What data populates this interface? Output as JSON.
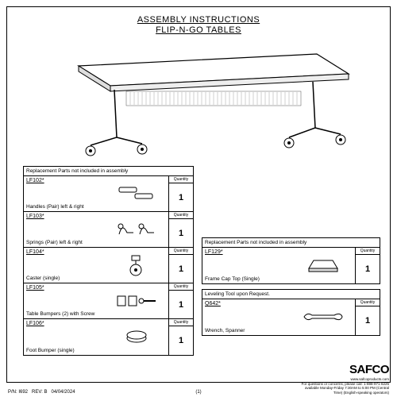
{
  "title": {
    "line1": "ASSEMBLY INSTRUCTIONS",
    "line2": "FLIP-N-GO TABLES"
  },
  "left_table": {
    "header": "Replacement Parts not included in assembly",
    "qty_label": "Quantity",
    "rows": [
      {
        "code": "LF102*",
        "name": "Handles (Pair) left & right",
        "qty": "1",
        "icon": "handles"
      },
      {
        "code": "LF103*",
        "name": "Springs (Pair) left & right",
        "qty": "1",
        "icon": "springs"
      },
      {
        "code": "LF104*",
        "name": "Caster (single)",
        "qty": "1",
        "icon": "caster"
      },
      {
        "code": "LF105*",
        "name": "Table Bumpers (2) with Screw",
        "qty": "1",
        "icon": "bumpers"
      },
      {
        "code": "LF106*",
        "name": "Foot Bumper (single)",
        "qty": "1",
        "icon": "foot-bumper"
      }
    ]
  },
  "right_table1": {
    "header": "Replacement Parts not included in assembly",
    "qty_label": "Quantity",
    "rows": [
      {
        "code": "LF129*",
        "name": "Frame Cap Top (Single)",
        "qty": "1",
        "icon": "frame-cap"
      }
    ]
  },
  "right_table2": {
    "header": "Leveling Tool upon Request.",
    "qty_label": "Quantity",
    "rows": [
      {
        "code": "Q642*",
        "name": "Wrench, Spanner",
        "qty": "1",
        "icon": "wrench"
      }
    ]
  },
  "footer": {
    "pn": "P/N: I692",
    "rev": "REV: B",
    "date": "04/04/2024",
    "page": "(1)",
    "logo": "SAFCO",
    "website": "www.safcoproducts.com",
    "info1": "For questions or concerns, please call: 1-888-971-6225",
    "info2": "available Monday-Friday 7:30AM to 5:00 PM (Central",
    "info3": "Time) (English-speaking operators)"
  }
}
